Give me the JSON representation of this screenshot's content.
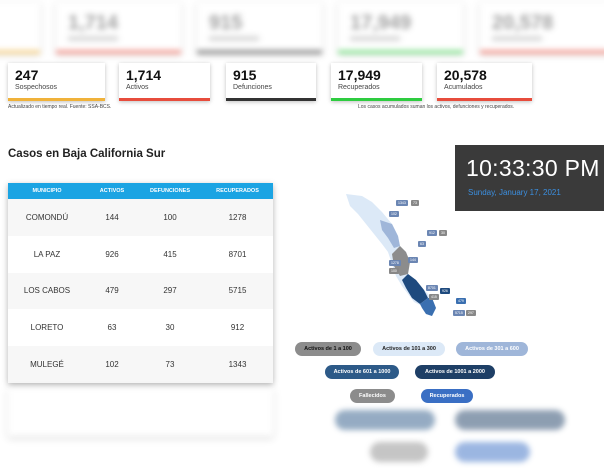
{
  "blurred_top": [
    "1,714",
    "915",
    "17,949",
    "20,578"
  ],
  "stats": [
    {
      "value": "247",
      "label": "Sospechosos",
      "color": "#f0b23a"
    },
    {
      "value": "1,714",
      "label": "Activos",
      "color": "#e74c3c"
    },
    {
      "value": "915",
      "label": "Defunciones",
      "color": "#333333"
    },
    {
      "value": "17,949",
      "label": "Recuperados",
      "color": "#2ecc40"
    },
    {
      "value": "20,578",
      "label": "Acumulados",
      "color": "#e74c3c"
    }
  ],
  "note_left": "Actualizado en tiempo real. Fuente: SSA-BCS.",
  "note_right": "Los casos acumulados suman los activos, defunciones y recuperados.",
  "section_title": "Casos en Baja California Sur",
  "table": {
    "headers": [
      "MUNICIPIO",
      "ACTIVOS",
      "DEFUNCIONES",
      "RECUPERADOS"
    ],
    "rows": [
      [
        "COMONDÚ",
        "144",
        "100",
        "1278"
      ],
      [
        "LA PAZ",
        "926",
        "415",
        "8701"
      ],
      [
        "LOS CABOS",
        "479",
        "297",
        "5715"
      ],
      [
        "LORETO",
        "63",
        "30",
        "912"
      ],
      [
        "MULEGÉ",
        "102",
        "73",
        "1343"
      ]
    ]
  },
  "clock": {
    "time": "10:33:30 PM",
    "date": "Sunday, January 17, 2021"
  },
  "map": {
    "labels": [
      {
        "text": "1343",
        "color": "#6b86b3"
      },
      {
        "text": "73",
        "color": "#888888"
      },
      {
        "text": "102",
        "color": "#6b86b3"
      },
      {
        "text": "912",
        "color": "#6b86b3"
      },
      {
        "text": "30",
        "color": "#888888"
      },
      {
        "text": "63",
        "color": "#6b86b3"
      },
      {
        "text": "1278",
        "color": "#6b86b3"
      },
      {
        "text": "100",
        "color": "#888888"
      },
      {
        "text": "144",
        "color": "#6b86b3"
      },
      {
        "text": "8701",
        "color": "#6b86b3"
      },
      {
        "text": "415",
        "color": "#888888"
      },
      {
        "text": "926",
        "color": "#1e4a7e"
      },
      {
        "text": "479",
        "color": "#3a6fb0"
      },
      {
        "text": "5715",
        "color": "#6b86b3"
      },
      {
        "text": "297",
        "color": "#888888"
      }
    ]
  },
  "legend": [
    {
      "label": "Activos de 1 a 100",
      "bg": "#8c8c8c",
      "fg": "#111111"
    },
    {
      "label": "Activos de 101 a 300",
      "bg": "#dce9f7",
      "fg": "#222222"
    },
    {
      "label": "Activos de 301 a 600",
      "bg": "#9fb6d9",
      "fg": "#ffffff"
    },
    {
      "label": "Activos de 601 a 1000",
      "bg": "#2d5a88",
      "fg": "#ffffff"
    },
    {
      "label": "Activos de 1001 a 2000",
      "bg": "#1e3f66",
      "fg": "#ffffff"
    },
    {
      "label": "Fallecidos",
      "bg": "#8c8c8c",
      "fg": "#ffffff"
    },
    {
      "label": "Recuperados",
      "bg": "#3a6fc4",
      "fg": "#ffffff"
    }
  ]
}
